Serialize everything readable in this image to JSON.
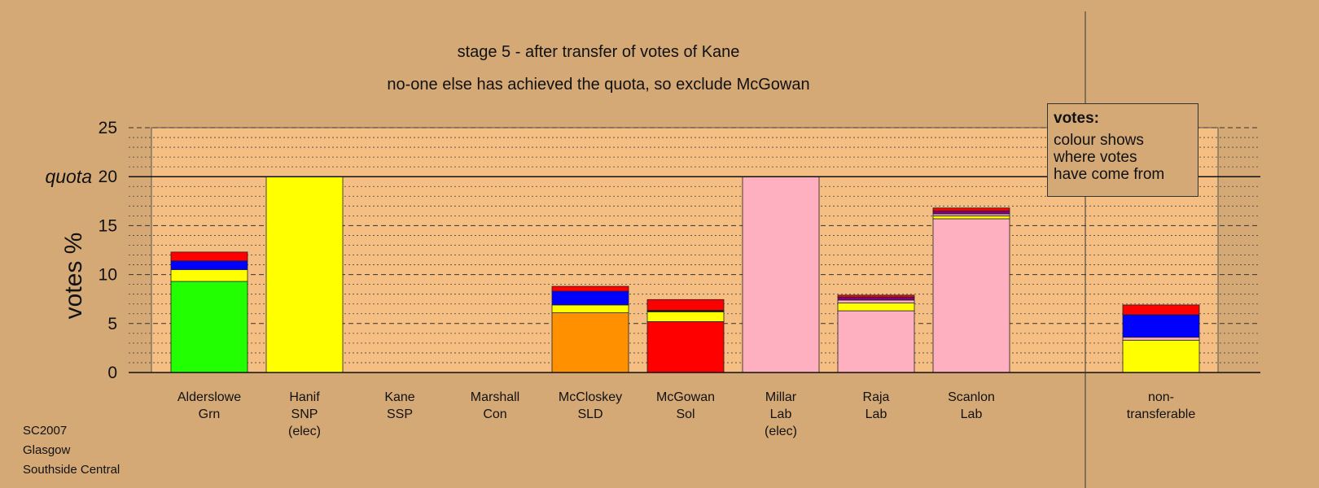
{
  "title": "stage 5 - after transfer of votes of Kane",
  "subtitle": "no-one else has achieved the quota, so exclude McGowan",
  "legend": {
    "heading": "votes:",
    "lines": [
      "colour shows",
      "where votes",
      "have come from"
    ]
  },
  "footer": [
    "SC2007",
    "Glasgow",
    "Southside Central"
  ],
  "colors": {
    "background": "#d4a976",
    "plot_area": "#f5bf83",
    "green": "#22ff00",
    "yellow": "#ffff00",
    "blue": "#0000ff",
    "red": "#ff0000",
    "orange": "#ff9000",
    "pink": "#ffb0c0",
    "purple": "#800080",
    "black": "#111111"
  },
  "chart_data": {
    "type": "bar",
    "stacked": true,
    "ylabel": "votes %",
    "ylim": [
      0,
      25
    ],
    "yticks": [
      0,
      5,
      10,
      15,
      20,
      25
    ],
    "quota": 20,
    "quota_label": "quota",
    "grid": true,
    "candidates": [
      {
        "name": "Alderslowe",
        "party": "Grn",
        "status": "",
        "segments": [
          {
            "color": "green",
            "value": 9.3
          },
          {
            "color": "yellow",
            "value": 1.2
          },
          {
            "color": "blue",
            "value": 0.9
          },
          {
            "color": "red",
            "value": 0.9
          }
        ]
      },
      {
        "name": "Hanif",
        "party": "SNP",
        "status": "(elec)",
        "segments": [
          {
            "color": "yellow",
            "value": 20.0
          }
        ]
      },
      {
        "name": "Kane",
        "party": "SSP",
        "status": "",
        "segments": []
      },
      {
        "name": "Marshall",
        "party": "Con",
        "status": "",
        "segments": []
      },
      {
        "name": "McCloskey",
        "party": "SLD",
        "status": "",
        "segments": [
          {
            "color": "orange",
            "value": 6.1
          },
          {
            "color": "yellow",
            "value": 0.8
          },
          {
            "color": "blue",
            "value": 1.4
          },
          {
            "color": "red",
            "value": 0.5
          }
        ]
      },
      {
        "name": "McGowan",
        "party": "Sol",
        "status": "",
        "segments": [
          {
            "color": "red",
            "value": 5.2
          },
          {
            "color": "yellow",
            "value": 1.0
          },
          {
            "color": "black",
            "value": 0.15
          },
          {
            "color": "red",
            "value": 1.1
          }
        ]
      },
      {
        "name": "Millar",
        "party": "Lab",
        "status": "(elec)",
        "segments": [
          {
            "color": "pink",
            "value": 20.0
          }
        ]
      },
      {
        "name": "Raja",
        "party": "Lab",
        "status": "",
        "segments": [
          {
            "color": "pink",
            "value": 6.3
          },
          {
            "color": "yellow",
            "value": 0.8
          },
          {
            "color": "pink",
            "value": 0.3
          },
          {
            "color": "purple",
            "value": 0.3
          },
          {
            "color": "red",
            "value": 0.2
          }
        ]
      },
      {
        "name": "Scanlon",
        "party": "Lab",
        "status": "",
        "segments": [
          {
            "color": "pink",
            "value": 15.7
          },
          {
            "color": "yellow",
            "value": 0.3
          },
          {
            "color": "pink",
            "value": 0.2
          },
          {
            "color": "purple",
            "value": 0.3
          },
          {
            "color": "red",
            "value": 0.3
          }
        ]
      }
    ],
    "nontransferable": {
      "name": "non-",
      "party": "transferable",
      "segments": [
        {
          "color": "yellow",
          "value": 3.3
        },
        {
          "color": "pink",
          "value": 0.3
        },
        {
          "color": "blue",
          "value": 2.3
        },
        {
          "color": "red",
          "value": 1.0
        }
      ]
    }
  }
}
